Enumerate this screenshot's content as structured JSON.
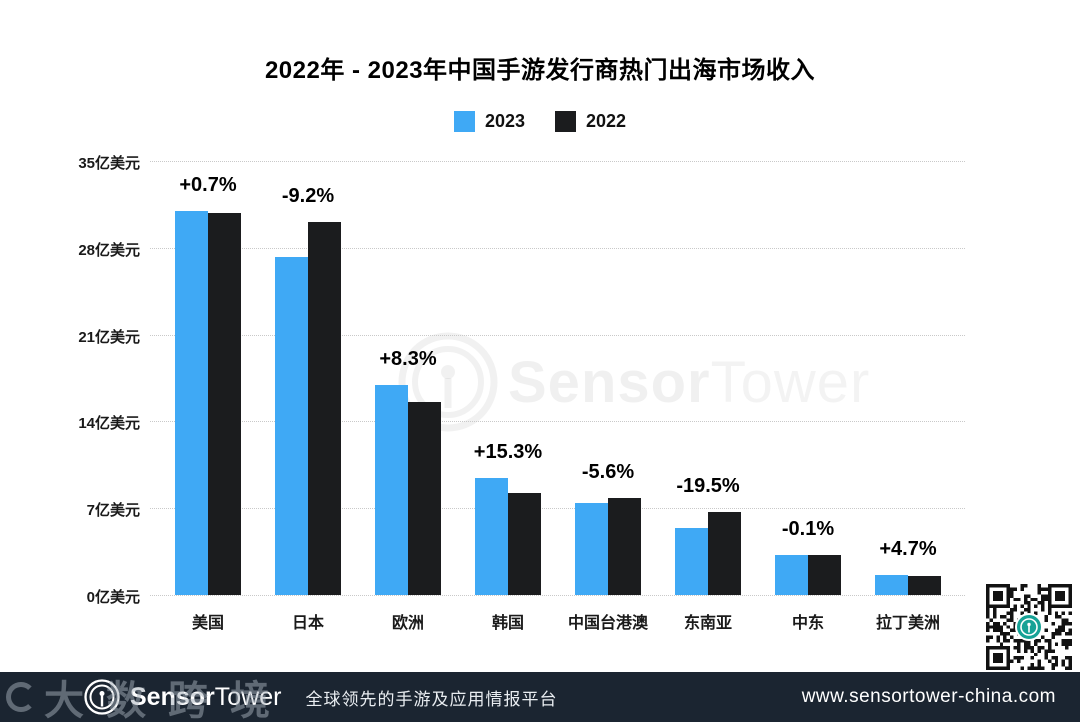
{
  "title": "2022年 - 2023年中国手游发行商热门出海市场收入",
  "legend": [
    {
      "label": "2023",
      "color": "#3fa9f5"
    },
    {
      "label": "2022",
      "color": "#1b1c1e"
    }
  ],
  "chart_data": {
    "type": "bar",
    "title": "2022年 - 2023年中国手游发行商热门出海市场收入",
    "categories": [
      "美国",
      "日本",
      "欧洲",
      "韩国",
      "中国台港澳",
      "东南亚",
      "中东",
      "拉丁美洲"
    ],
    "series": [
      {
        "name": "2023",
        "color": "#3fa9f5",
        "values": [
          31.0,
          27.3,
          16.9,
          9.4,
          7.4,
          5.4,
          3.2,
          1.6
        ]
      },
      {
        "name": "2022",
        "color": "#1b1c1e",
        "values": [
          30.8,
          30.1,
          15.6,
          8.2,
          7.8,
          6.7,
          3.2,
          1.55
        ]
      }
    ],
    "change_labels": [
      "+0.7%",
      "-9.2%",
      "+8.3%",
      "+15.3%",
      "-5.6%",
      "-19.5%",
      "-0.1%",
      "+4.7%"
    ],
    "unit": "亿美元",
    "ylabel": "",
    "xlabel": "",
    "ylim": [
      0,
      35
    ],
    "y_ticks": [
      {
        "value": 35,
        "label": "35亿美元"
      },
      {
        "value": 28,
        "label": "28亿美元"
      },
      {
        "value": 21,
        "label": "21亿美元"
      },
      {
        "value": 14,
        "label": "14亿美元"
      },
      {
        "value": 7,
        "label": "7亿美元"
      },
      {
        "value": 0,
        "label": "0亿美元"
      }
    ],
    "grid": "horizontal-dotted",
    "legend_position": "top-center"
  },
  "watermark_center": {
    "brand_bold": "Sensor",
    "brand_light": "Tower"
  },
  "watermark_overlay": {
    "text": "大数跨境"
  },
  "footer": {
    "brand_bold": "Sensor",
    "brand_light": "Tower",
    "tagline": "全球领先的手游及应用情报平台",
    "website": "www.sensortower-china.com",
    "bg_color": "#1b2531"
  },
  "qr": {
    "description": "sensortower-qr-code",
    "center_logo_color": "#16a296"
  }
}
